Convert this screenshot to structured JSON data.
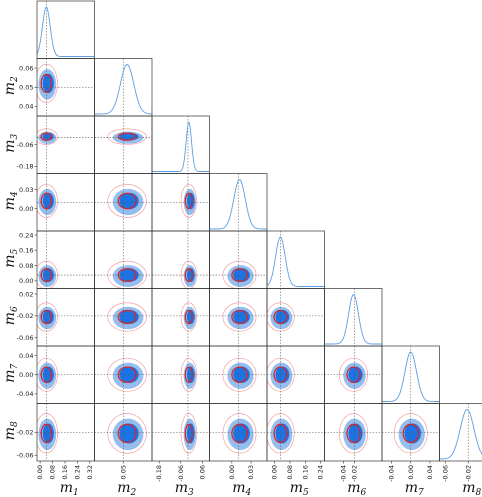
{
  "chart_data": {
    "type": "corner",
    "parameters": [
      "m_1",
      "m_2",
      "m_3",
      "m_4",
      "m_5",
      "m_6",
      "m_7",
      "m_8"
    ],
    "axis_labels": [
      {
        "base": "m",
        "sub": "1"
      },
      {
        "base": "m",
        "sub": "2"
      },
      {
        "base": "m",
        "sub": "3"
      },
      {
        "base": "m",
        "sub": "4"
      },
      {
        "base": "m",
        "sub": "5"
      },
      {
        "base": "m",
        "sub": "6"
      },
      {
        "base": "m",
        "sub": "7"
      },
      {
        "base": "m",
        "sub": "8"
      }
    ],
    "x_tick_labels": [
      [
        "0.00",
        "0.08",
        "0.16",
        "0.24",
        "0.32"
      ],
      [
        "0.05"
      ],
      [
        "-0.18",
        "-0.06",
        "0.06"
      ],
      [
        "0.00",
        "0.03"
      ],
      [
        "0.00",
        "0.08",
        "0.16",
        "0.24"
      ],
      [
        "-0.04",
        "-0.02"
      ],
      [
        "-0.04",
        "0.00",
        "0.04"
      ],
      [
        "-0.06",
        "-0.02",
        "0.02"
      ]
    ],
    "y_tick_labels": {
      "m_2": [
        "0.06",
        "0.05",
        "0.04"
      ],
      "m_3": [
        "-0.06",
        "-0.18"
      ],
      "m_4": [
        "0.03",
        "0.00"
      ],
      "m_5": [
        "0.24",
        "0.16",
        "0.08",
        "0.00"
      ],
      "m_6": [
        "0.02",
        "-0.02",
        "-0.06"
      ],
      "m_7": [
        "0.04",
        "0.00",
        "-0.04"
      ],
      "m_8": [
        "-0.02",
        "-0.06"
      ]
    },
    "x_tick_values": [
      [
        0.0,
        0.08,
        0.16,
        0.24,
        0.32
      ],
      [
        0.05
      ],
      [
        -0.18,
        -0.06,
        0.06
      ],
      [
        0.0,
        0.03
      ],
      [
        0.0,
        0.08,
        0.16,
        0.24
      ],
      [
        -0.04,
        -0.02
      ],
      [
        -0.04,
        0.0,
        0.04
      ],
      [
        -0.06,
        -0.02,
        0.02
      ]
    ],
    "ranges": [
      [
        -0.02,
        0.35
      ],
      [
        0.035,
        0.065
      ],
      [
        -0.22,
        0.1
      ],
      [
        -0.035,
        0.055
      ],
      [
        -0.04,
        0.26
      ],
      [
        -0.075,
        0.03
      ],
      [
        -0.06,
        0.06
      ],
      [
        -0.07,
        0.03
      ]
    ],
    "true_values": [
      0.04,
      0.05,
      -0.02,
      0.01,
      0.03,
      -0.02,
      0.0,
      -0.02
    ],
    "marginal_centers": [
      0.04,
      0.052,
      -0.015,
      0.012,
      0.03,
      -0.022,
      0.0,
      -0.022
    ],
    "marginal_widths": [
      0.025,
      0.0035,
      0.015,
      0.009,
      0.025,
      0.009,
      0.012,
      0.012
    ],
    "posterior_colors": {
      "inner": "#1a74e8",
      "outer": "#95bdee",
      "marginal": "#5b9ee6"
    },
    "fisher_colors": {
      "sigma1": "#d62728",
      "sigma2": "#f2a0a0"
    },
    "grid": false
  }
}
